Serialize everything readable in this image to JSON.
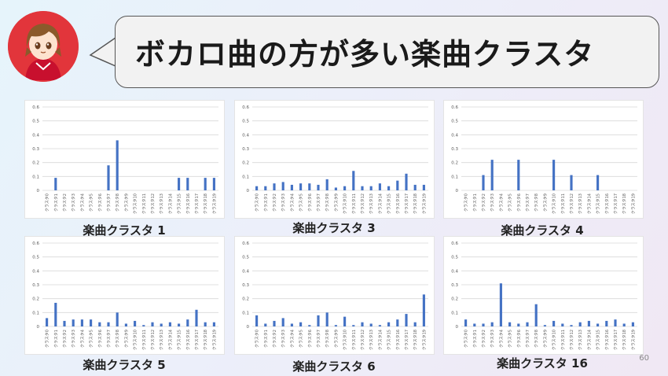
{
  "slide": {
    "title": "ボカロ曲の方が多い楽曲クラスタ",
    "page_number": "60"
  },
  "avatar": {
    "icon": "character-avatar-icon",
    "bg_color": "#e2353b"
  },
  "colors": {
    "bar": "#4472c4",
    "grid": "#d9d9d9",
    "axis_text": "#595959"
  },
  "chart_data": [
    {
      "type": "bar",
      "title": "楽曲クラスタ 1",
      "categories": [
        "クラスタ0",
        "クラスタ1",
        "クラスタ2",
        "クラスタ3",
        "クラスタ4",
        "クラスタ5",
        "クラスタ6",
        "クラスタ7",
        "クラスタ8",
        "クラスタ9",
        "クラスタ10",
        "クラスタ11",
        "クラスタ12",
        "クラスタ13",
        "クラスタ14",
        "クラスタ15",
        "クラスタ16",
        "クラスタ17",
        "クラスタ18",
        "クラスタ19"
      ],
      "values": [
        0,
        0.09,
        0,
        0,
        0,
        0,
        0,
        0.18,
        0.36,
        0,
        0,
        0,
        0,
        0,
        0,
        0.09,
        0.09,
        0,
        0.09,
        0.09
      ],
      "ylim": [
        0,
        0.6
      ],
      "yticks": [
        "0",
        "0.1",
        "0.2",
        "0.3",
        "0.4",
        "0.5",
        "0.6"
      ]
    },
    {
      "type": "bar",
      "title": "楽曲クラスタ 3",
      "categories": [
        "クラスタ0",
        "クラスタ1",
        "クラスタ2",
        "クラスタ3",
        "クラスタ4",
        "クラスタ5",
        "クラスタ6",
        "クラスタ7",
        "クラスタ8",
        "クラスタ9",
        "クラスタ10",
        "クラスタ11",
        "クラスタ12",
        "クラスタ13",
        "クラスタ14",
        "クラスタ15",
        "クラスタ16",
        "クラスタ17",
        "クラスタ18",
        "クラスタ19"
      ],
      "values": [
        0.03,
        0.03,
        0.05,
        0.06,
        0.04,
        0.05,
        0.05,
        0.04,
        0.08,
        0.02,
        0.03,
        0.14,
        0.03,
        0.03,
        0.05,
        0.03,
        0.07,
        0.12,
        0.04,
        0.04
      ],
      "ylim": [
        0,
        0.6
      ],
      "yticks": [
        "0",
        "0.1",
        "0.2",
        "0.3",
        "0.4",
        "0.5",
        "0.6"
      ]
    },
    {
      "type": "bar",
      "title": "楽曲クラスタ 4",
      "categories": [
        "クラスタ0",
        "クラスタ1",
        "クラスタ2",
        "クラスタ3",
        "クラスタ4",
        "クラスタ5",
        "クラスタ6",
        "クラスタ7",
        "クラスタ8",
        "クラスタ9",
        "クラスタ10",
        "クラスタ11",
        "クラスタ12",
        "クラスタ13",
        "クラスタ14",
        "クラスタ15",
        "クラスタ16",
        "クラスタ17",
        "クラスタ18",
        "クラスタ19"
      ],
      "values": [
        0,
        0,
        0.11,
        0.22,
        0,
        0,
        0.22,
        0,
        0,
        0,
        0.22,
        0,
        0.11,
        0,
        0,
        0.11,
        0,
        0,
        0,
        0
      ],
      "ylim": [
        0,
        0.6
      ],
      "yticks": [
        "0",
        "0.1",
        "0.2",
        "0.3",
        "0.4",
        "0.5",
        "0.6"
      ]
    },
    {
      "type": "bar",
      "title": "楽曲クラスタ 5",
      "categories": [
        "クラスタ0",
        "クラスタ1",
        "クラスタ2",
        "クラスタ3",
        "クラスタ4",
        "クラスタ5",
        "クラスタ6",
        "クラスタ7",
        "クラスタ8",
        "クラスタ9",
        "クラスタ10",
        "クラスタ11",
        "クラスタ12",
        "クラスタ13",
        "クラスタ14",
        "クラスタ15",
        "クラスタ16",
        "クラスタ17",
        "クラスタ18",
        "クラスタ19"
      ],
      "values": [
        0.06,
        0.17,
        0.04,
        0.05,
        0.05,
        0.05,
        0.03,
        0.03,
        0.1,
        0.02,
        0.04,
        0.01,
        0.03,
        0.02,
        0.03,
        0.02,
        0.05,
        0.12,
        0.03,
        0.03
      ],
      "ylim": [
        0,
        0.6
      ],
      "yticks": [
        "0",
        "0.1",
        "0.2",
        "0.3",
        "0.4",
        "0.5",
        "0.6"
      ]
    },
    {
      "type": "bar",
      "title": "楽曲クラスタ 6",
      "categories": [
        "クラスタ0",
        "クラスタ1",
        "クラスタ2",
        "クラスタ3",
        "クラスタ4",
        "クラスタ5",
        "クラスタ6",
        "クラスタ7",
        "クラスタ8",
        "クラスタ9",
        "クラスタ10",
        "クラスタ11",
        "クラスタ12",
        "クラスタ13",
        "クラスタ14",
        "クラスタ15",
        "クラスタ16",
        "クラスタ17",
        "クラスタ18",
        "クラスタ19"
      ],
      "values": [
        0.08,
        0.02,
        0.04,
        0.06,
        0.02,
        0.03,
        0.01,
        0.08,
        0.1,
        0.01,
        0.07,
        0.01,
        0.03,
        0.02,
        0.01,
        0.03,
        0.05,
        0.09,
        0.03,
        0.23
      ],
      "ylim": [
        0,
        0.6
      ],
      "yticks": [
        "0",
        "0.1",
        "0.2",
        "0.3",
        "0.4",
        "0.5",
        "0.6"
      ]
    },
    {
      "type": "bar",
      "title": "楽曲クラスタ 16",
      "categories": [
        "クラスタ0",
        "クラスタ1",
        "クラスタ2",
        "クラスタ3",
        "クラスタ4",
        "クラスタ5",
        "クラスタ6",
        "クラスタ7",
        "クラスタ8",
        "クラスタ9",
        "クラスタ10",
        "クラスタ11",
        "クラスタ12",
        "クラスタ13",
        "クラスタ14",
        "クラスタ15",
        "クラスタ16",
        "クラスタ17",
        "クラスタ18",
        "クラスタ19"
      ],
      "values": [
        0.05,
        0.02,
        0.02,
        0.03,
        0.31,
        0.03,
        0.02,
        0.03,
        0.16,
        0.01,
        0.04,
        0.02,
        0.01,
        0.03,
        0.04,
        0.02,
        0.04,
        0.05,
        0.02,
        0.03
      ],
      "ylim": [
        0,
        0.6
      ],
      "yticks": [
        "0",
        "0.1",
        "0.2",
        "0.3",
        "0.4",
        "0.5",
        "0.6"
      ]
    }
  ]
}
